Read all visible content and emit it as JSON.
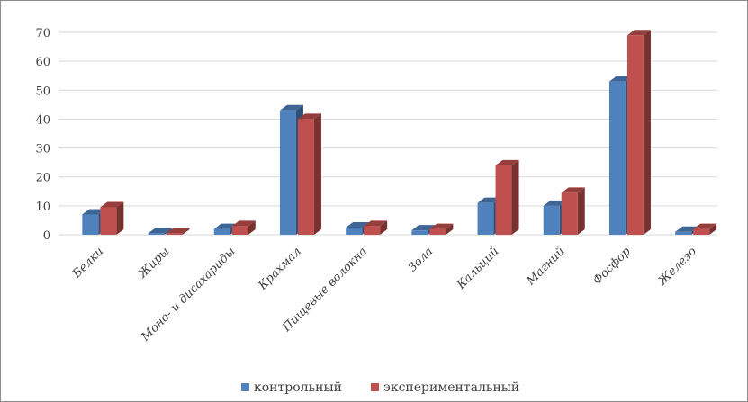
{
  "chart_data": {
    "type": "bar",
    "title": "",
    "xlabel": "",
    "ylabel": "",
    "ylim": [
      0,
      70
    ],
    "yticks": [
      0,
      10,
      20,
      30,
      40,
      50,
      60,
      70
    ],
    "grid": true,
    "legend_position": "bottom",
    "categories": [
      "Белки",
      "Жиры",
      "Моно- и дисахариды",
      "Крахмал",
      "Пищевые волокна",
      "Зола",
      "Кальций",
      "Магний",
      "Фосфор",
      "Железо"
    ],
    "series": [
      {
        "name": "контрольный",
        "color": "#4f81bd",
        "values": [
          7,
          0.5,
          2,
          43,
          2.5,
          1.5,
          11,
          10,
          53,
          1
        ]
      },
      {
        "name": "экспериментальный",
        "color": "#c0504d",
        "values": [
          9.5,
          0.5,
          3,
          40,
          3,
          2,
          24,
          14.5,
          69,
          2
        ]
      }
    ]
  }
}
